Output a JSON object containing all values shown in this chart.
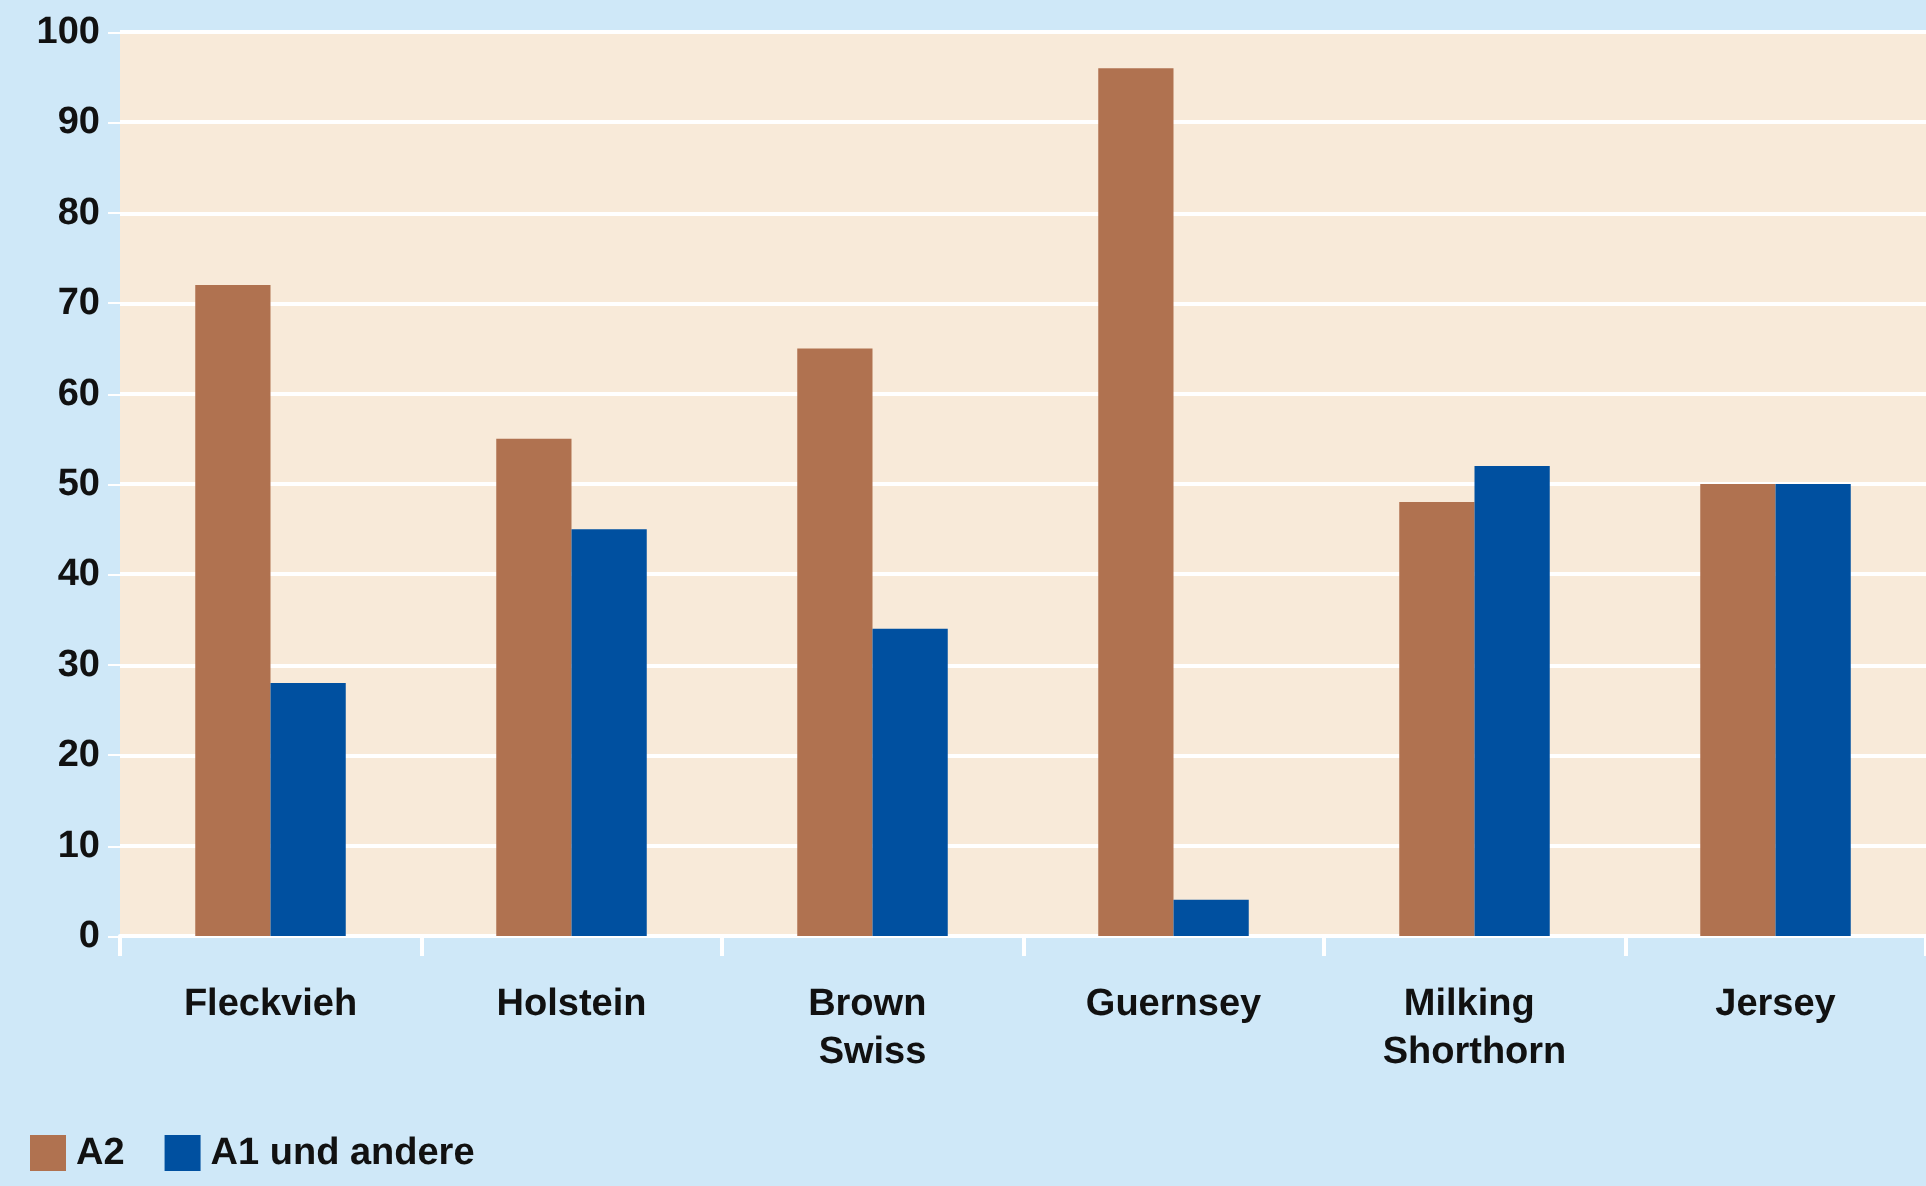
{
  "chart_data": {
    "type": "bar",
    "categories": [
      "Fleckvieh",
      "Holstein",
      "Brown Swiss",
      "Guernsey",
      "Milking Shorthorn",
      "Jersey"
    ],
    "series": [
      {
        "name": "A2",
        "color": "#b07250",
        "values": [
          72,
          55,
          65,
          96,
          48,
          50
        ]
      },
      {
        "name": "A1 und andere",
        "color": "#0050a0",
        "values": [
          28,
          45,
          34,
          4,
          52,
          50
        ]
      }
    ],
    "ylim": [
      0,
      100
    ],
    "yticks": [
      0,
      10,
      20,
      30,
      40,
      50,
      60,
      70,
      80,
      90,
      100
    ],
    "grid": "y",
    "legend": "bottom left"
  }
}
